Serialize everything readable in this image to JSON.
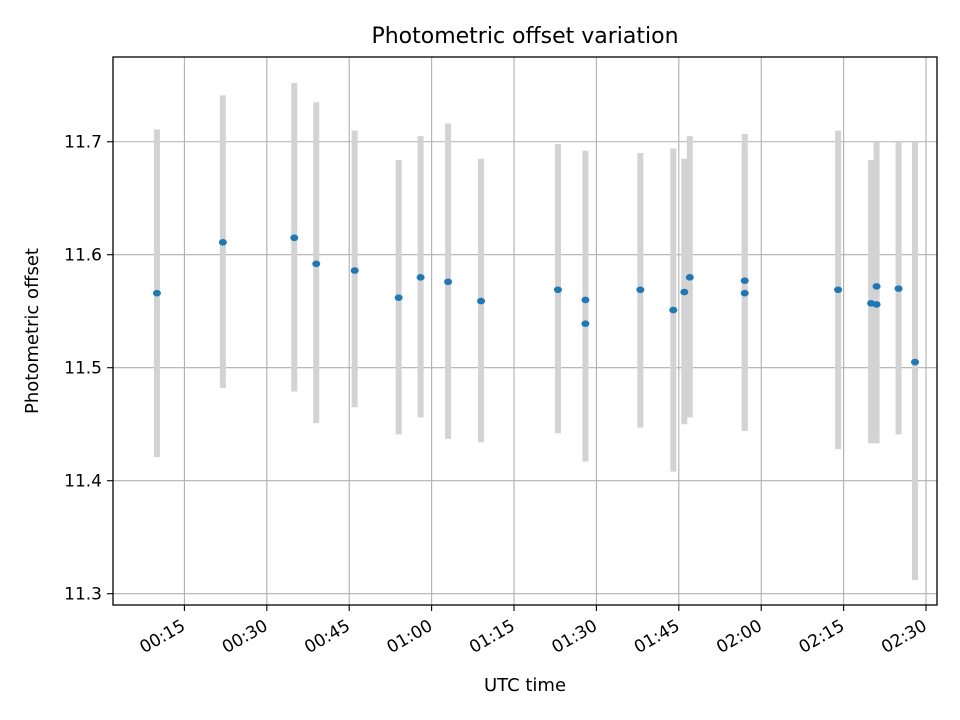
{
  "chart_data": {
    "type": "scatter",
    "title": "Photometric offset variation",
    "xlabel": "UTC time",
    "ylabel": "Photometric offset",
    "x_unit": "UTC time (HH:MM)",
    "xlim": [
      "00:02",
      "02:32"
    ],
    "ylim": [
      11.29,
      11.775
    ],
    "grid": true,
    "x_ticks": [
      "00:15",
      "00:30",
      "00:45",
      "01:00",
      "01:15",
      "01:30",
      "01:45",
      "02:00",
      "02:15",
      "02:30"
    ],
    "y_ticks": [
      "11.3",
      "11.4",
      "11.5",
      "11.6",
      "11.7"
    ],
    "points": [
      {
        "x": "00:10",
        "y": 11.566,
        "ymin": 11.421,
        "ymax": 11.711
      },
      {
        "x": "00:22",
        "y": 11.611,
        "ymin": 11.482,
        "ymax": 11.741
      },
      {
        "x": "00:35",
        "y": 11.615,
        "ymin": 11.479,
        "ymax": 11.752
      },
      {
        "x": "00:39",
        "y": 11.592,
        "ymin": 11.451,
        "ymax": 11.735
      },
      {
        "x": "00:46",
        "y": 11.586,
        "ymin": 11.465,
        "ymax": 11.71
      },
      {
        "x": "00:54",
        "y": 11.562,
        "ymin": 11.441,
        "ymax": 11.684
      },
      {
        "x": "00:58",
        "y": 11.58,
        "ymin": 11.456,
        "ymax": 11.705
      },
      {
        "x": "01:03",
        "y": 11.576,
        "ymin": 11.437,
        "ymax": 11.716
      },
      {
        "x": "01:09",
        "y": 11.559,
        "ymin": 11.434,
        "ymax": 11.685
      },
      {
        "x": "01:23",
        "y": 11.569,
        "ymin": 11.442,
        "ymax": 11.698
      },
      {
        "x": "01:28",
        "y": 11.56,
        "ymin": 11.429,
        "ymax": 11.692
      },
      {
        "x": "01:28",
        "y": 11.539,
        "ymin": 11.417,
        "ymax": 11.662
      },
      {
        "x": "01:38",
        "y": 11.569,
        "ymin": 11.447,
        "ymax": 11.69
      },
      {
        "x": "01:44",
        "y": 11.551,
        "ymin": 11.408,
        "ymax": 11.694
      },
      {
        "x": "01:46",
        "y": 11.567,
        "ymin": 11.45,
        "ymax": 11.685
      },
      {
        "x": "01:47",
        "y": 11.58,
        "ymin": 11.456,
        "ymax": 11.705
      },
      {
        "x": "01:57",
        "y": 11.566,
        "ymin": 11.444,
        "ymax": 11.69
      },
      {
        "x": "01:57",
        "y": 11.577,
        "ymin": 11.447,
        "ymax": 11.707
      },
      {
        "x": "02:14",
        "y": 11.569,
        "ymin": 11.428,
        "ymax": 11.71
      },
      {
        "x": "02:20",
        "y": 11.557,
        "ymin": 11.433,
        "ymax": 11.684
      },
      {
        "x": "02:21",
        "y": 11.556,
        "ymin": 11.433,
        "ymax": 11.684
      },
      {
        "x": "02:21",
        "y": 11.572,
        "ymin": 11.445,
        "ymax": 11.7
      },
      {
        "x": "02:25",
        "y": 11.57,
        "ymin": 11.441,
        "ymax": 11.7
      },
      {
        "x": "02:28",
        "y": 11.505,
        "ymin": 11.312,
        "ymax": 11.7
      }
    ],
    "colors": {
      "points": "#1f77b4",
      "error_bars": "#d3d3d3",
      "grid": "#b0b0b0",
      "axes": "#000000"
    }
  }
}
